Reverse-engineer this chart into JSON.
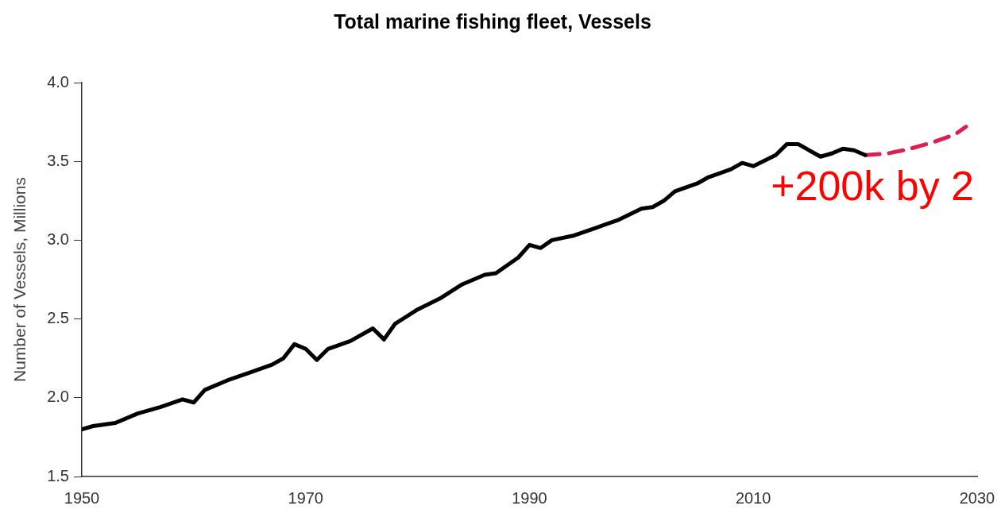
{
  "chart_data": {
    "type": "line",
    "title": "Total marine fishing fleet, Vessels",
    "ylabel": "Number of Vessels, Millions",
    "annotations": [
      "+200k by 2"
    ],
    "xlim": [
      1950,
      2030
    ],
    "xticks": [
      1950,
      1970,
      1990,
      2010,
      2030
    ],
    "ylim": [
      1.5,
      4.0
    ],
    "yticks": [
      {
        "value": 1.5,
        "label": "1.5"
      },
      {
        "value": 2.0,
        "label": "2.0"
      },
      {
        "value": 2.5,
        "label": "2.5"
      },
      {
        "value": 3.0,
        "label": "3.0"
      },
      {
        "value": 3.5,
        "label": "3.5"
      },
      {
        "value": 4.0,
        "label": "4.0"
      }
    ],
    "grid": false,
    "legend": false,
    "marker": "none",
    "series": [
      {
        "color": "#000000",
        "line_style": "solid",
        "x": [
          1950,
          1951,
          1953,
          1955,
          1957,
          1959,
          1960,
          1961,
          1963,
          1965,
          1967,
          1968,
          1969,
          1970,
          1971,
          1972,
          1974,
          1976,
          1977,
          1978,
          1980,
          1982,
          1984,
          1986,
          1987,
          1989,
          1990,
          1991,
          1992,
          1994,
          1996,
          1998,
          2000,
          2001,
          2002,
          2003,
          2005,
          2006,
          2008,
          2009,
          2010,
          2012,
          2013,
          2014,
          2016,
          2017,
          2018,
          2019,
          2020
        ],
        "values": [
          1.8,
          1.82,
          1.84,
          1.9,
          1.94,
          1.99,
          1.97,
          2.05,
          2.11,
          2.16,
          2.21,
          2.25,
          2.34,
          2.31,
          2.24,
          2.31,
          2.36,
          2.44,
          2.37,
          2.47,
          2.56,
          2.63,
          2.72,
          2.78,
          2.79,
          2.89,
          2.97,
          2.95,
          3.0,
          3.03,
          3.08,
          3.13,
          3.2,
          3.21,
          3.25,
          3.31,
          3.36,
          3.4,
          3.45,
          3.49,
          3.47,
          3.54,
          3.61,
          3.61,
          3.53,
          3.55,
          3.58,
          3.57,
          3.54
        ]
      },
      {
        "color": "#dc1e50",
        "line_style": "dashed",
        "x": [
          2020,
          2022,
          2024,
          2026,
          2028,
          2029
        ],
        "values": [
          3.54,
          3.55,
          3.58,
          3.62,
          3.67,
          3.72
        ]
      }
    ]
  }
}
